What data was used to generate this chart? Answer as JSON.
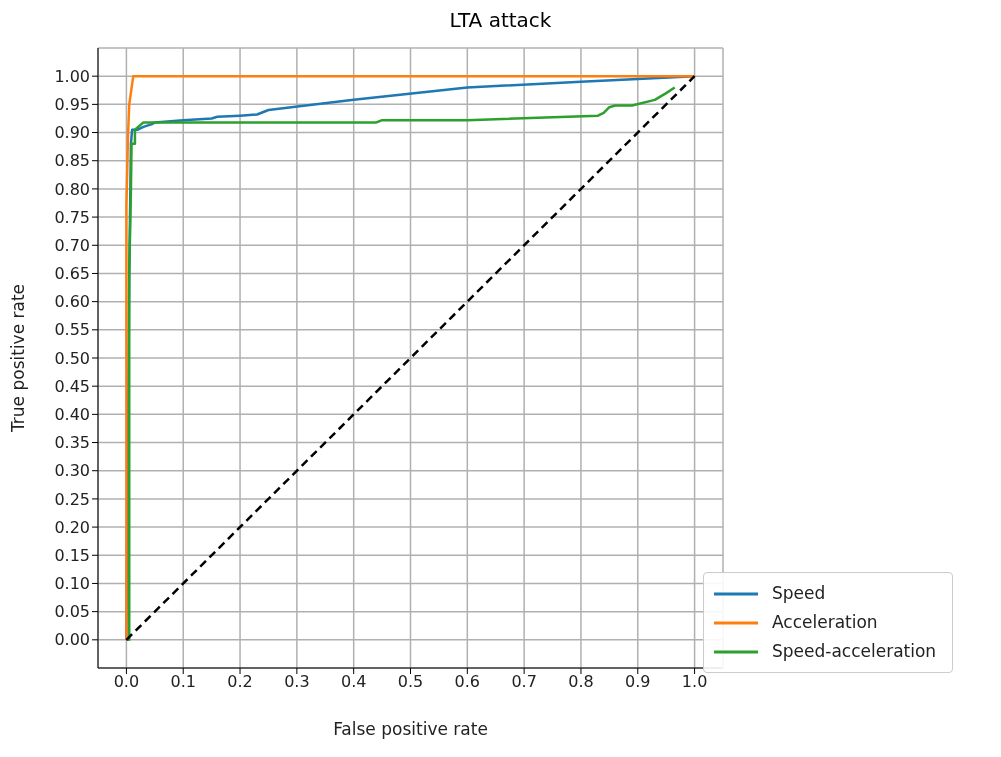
{
  "chart_data": {
    "type": "line",
    "title": "LTA attack",
    "xlabel": "False positive rate",
    "ylabel": "True positive rate",
    "xlim": [
      -0.05,
      1.05
    ],
    "ylim": [
      -0.05,
      1.05
    ],
    "xticks": [
      {
        "value": 0,
        "label": "0.0"
      },
      {
        "value": 0.1,
        "label": "0.1"
      },
      {
        "value": 0.2,
        "label": "0.2"
      },
      {
        "value": 0.3,
        "label": "0.3"
      },
      {
        "value": 0.4,
        "label": "0.4"
      },
      {
        "value": 0.5,
        "label": "0.5"
      },
      {
        "value": 0.6,
        "label": "0.6"
      },
      {
        "value": 0.7,
        "label": "0.7"
      },
      {
        "value": 0.8,
        "label": "0.8"
      },
      {
        "value": 0.9,
        "label": "0.9"
      },
      {
        "value": 1,
        "label": "1.0"
      }
    ],
    "yticks": [
      {
        "value": 0,
        "label": "0.00"
      },
      {
        "value": 0.05,
        "label": "0.05"
      },
      {
        "value": 0.1,
        "label": "0.10"
      },
      {
        "value": 0.15,
        "label": "0.15"
      },
      {
        "value": 0.2,
        "label": "0.20"
      },
      {
        "value": 0.25,
        "label": "0.25"
      },
      {
        "value": 0.3,
        "label": "0.30"
      },
      {
        "value": 0.35,
        "label": "0.35"
      },
      {
        "value": 0.4,
        "label": "0.40"
      },
      {
        "value": 0.45,
        "label": "0.45"
      },
      {
        "value": 0.5,
        "label": "0.50"
      },
      {
        "value": 0.55,
        "label": "0.55"
      },
      {
        "value": 0.6,
        "label": "0.60"
      },
      {
        "value": 0.65,
        "label": "0.65"
      },
      {
        "value": 0.7,
        "label": "0.70"
      },
      {
        "value": 0.75,
        "label": "0.75"
      },
      {
        "value": 0.8,
        "label": "0.80"
      },
      {
        "value": 0.85,
        "label": "0.85"
      },
      {
        "value": 0.9,
        "label": "0.90"
      },
      {
        "value": 0.95,
        "label": "0.95"
      },
      {
        "value": 1,
        "label": "1.00"
      }
    ],
    "grid": true,
    "legend": "bottom right",
    "marker": "none",
    "line_style": "solid",
    "series": [
      {
        "name": "Speed",
        "color": "#1f77b4",
        "x": [
          0,
          0.005,
          0.008,
          0.01,
          0.02,
          0.03,
          0.045,
          0.05,
          0.1,
          0.15,
          0.16,
          0.2,
          0.23,
          0.25,
          0.4,
          0.6,
          0.8,
          1
        ],
        "values": [
          0,
          0.65,
          0.88,
          0.905,
          0.905,
          0.91,
          0.915,
          0.918,
          0.922,
          0.925,
          0.928,
          0.93,
          0.932,
          0.94,
          0.958,
          0.98,
          0.99,
          1
        ]
      },
      {
        "name": "Acceleration",
        "color": "#ff7f0e",
        "x": [
          0,
          0,
          0.003,
          0.005,
          0.012,
          1
        ],
        "values": [
          0,
          0.77,
          0.9,
          0.95,
          1,
          1
        ]
      },
      {
        "name": "Speed-acceleration",
        "color": "#2ca02c",
        "x": [
          0,
          0.005,
          0.005,
          0.008,
          0.009,
          0.015,
          0.015,
          0.03,
          0.44,
          0.45,
          0.6,
          0.83,
          0.84,
          0.85,
          0.86,
          0.89,
          0.93,
          0.95,
          0.965
        ],
        "values": [
          0,
          0,
          0.65,
          0.8,
          0.88,
          0.88,
          0.905,
          0.918,
          0.918,
          0.922,
          0.922,
          0.93,
          0.935,
          0.945,
          0.948,
          0.948,
          0.958,
          0.97,
          0.98
        ]
      },
      {
        "color": "#000000",
        "line_style": "dashed",
        "x": [
          0,
          1
        ],
        "values": [
          0,
          1
        ]
      }
    ]
  }
}
